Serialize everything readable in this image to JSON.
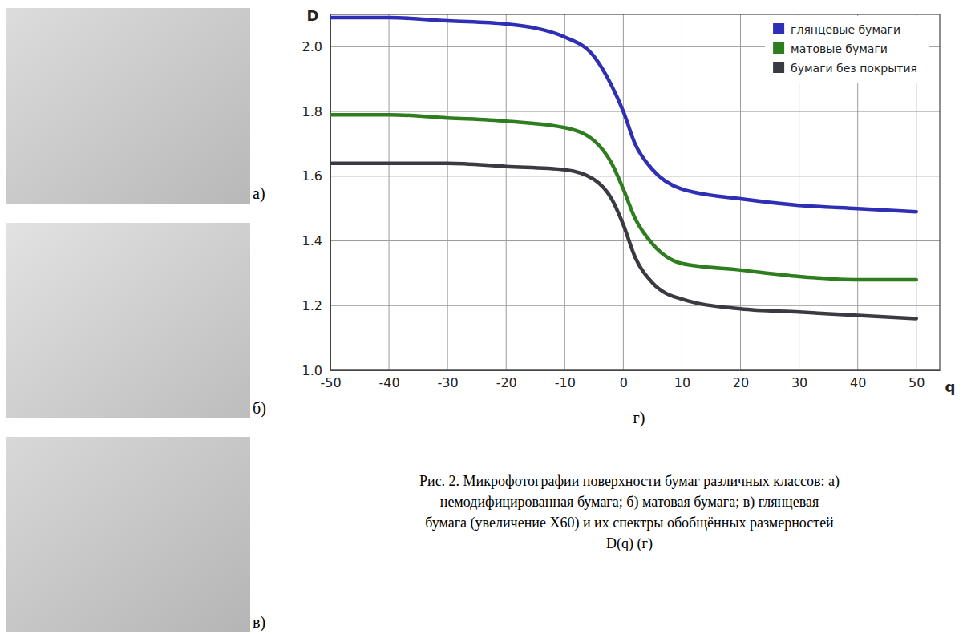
{
  "chart_data": {
    "type": "line",
    "x_label": "q",
    "y_label": "D",
    "x": [
      -50,
      -40,
      -30,
      -20,
      -10,
      -5,
      -2,
      0,
      2,
      5,
      10,
      20,
      30,
      40,
      50
    ],
    "series": [
      {
        "name": "глянцевые бумаги",
        "color": "#2f2fb5",
        "values": [
          2.09,
          2.09,
          2.08,
          2.07,
          2.03,
          1.97,
          1.88,
          1.8,
          1.7,
          1.62,
          1.56,
          1.53,
          1.51,
          1.5,
          1.49
        ]
      },
      {
        "name": "матовые бумаги",
        "color": "#2e7d1f",
        "values": [
          1.79,
          1.79,
          1.78,
          1.77,
          1.75,
          1.71,
          1.64,
          1.56,
          1.47,
          1.39,
          1.33,
          1.31,
          1.29,
          1.28,
          1.28
        ]
      },
      {
        "name": "бумаги без покрытия",
        "color": "#3a3a42",
        "values": [
          1.64,
          1.64,
          1.64,
          1.63,
          1.62,
          1.59,
          1.53,
          1.45,
          1.35,
          1.27,
          1.22,
          1.19,
          1.18,
          1.17,
          1.16
        ]
      }
    ],
    "xlim": [
      -50,
      54
    ],
    "xticks": [
      -50,
      -40,
      -30,
      -20,
      -10,
      0,
      10,
      20,
      30,
      40,
      50
    ],
    "ylim": [
      1.0,
      2.1
    ],
    "yticks": [
      {
        "value": 1.0,
        "label": "1.0"
      },
      1.2,
      1.4,
      1.6,
      1.8,
      {
        "value": 2.0,
        "label": "2.0"
      }
    ],
    "grid": true,
    "legend": "top-right"
  },
  "figure": {
    "panel_labels": [
      "а)",
      "б)",
      "в)"
    ],
    "chart_label": "г)",
    "caption": [
      "Рис. 2. Микрофотографии поверхности бумаг различных классов: а)",
      "немодифицированная бумага; б) матовая бумага; в) глянцевая",
      "бумага (увеличение X60) и их спектры обобщённых размерностей",
      "D(q) (г)"
    ]
  }
}
